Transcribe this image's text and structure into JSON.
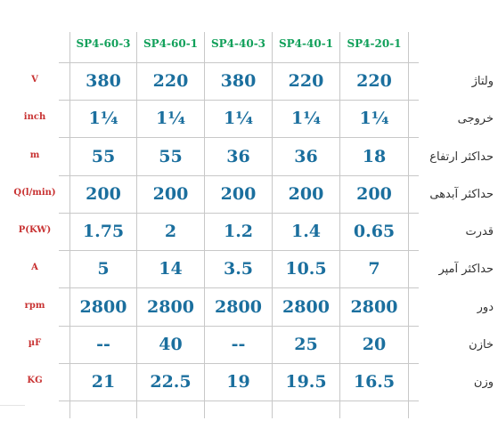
{
  "columns": [
    "SP4-60-3",
    "SP4-60-1",
    "SP4-40-3",
    "SP4-40-1",
    "SP4-20-1"
  ],
  "rows": [
    {
      "unit": "V",
      "label": "ولتاژ",
      "values": [
        "380",
        "220",
        "380",
        "220",
        "220"
      ]
    },
    {
      "unit": "inch",
      "label": "خروجی",
      "values": [
        "1¼",
        "1¼",
        "1¼",
        "1¼",
        "1¼"
      ]
    },
    {
      "unit": "m",
      "label": "حداکثر ارتفاع",
      "values": [
        "55",
        "55",
        "36",
        "36",
        "18"
      ]
    },
    {
      "unit": "Q(l/min)",
      "label": "حداکثر آبدهی",
      "values": [
        "200",
        "200",
        "200",
        "200",
        "200"
      ]
    },
    {
      "unit": "P(KW)",
      "label": "قدرت",
      "values": [
        "1.75",
        "2",
        "1.2",
        "1.4",
        "0.65"
      ]
    },
    {
      "unit": "A",
      "label": "حداکثر آمپر",
      "values": [
        "5",
        "14",
        "3.5",
        "10.5",
        "7"
      ]
    },
    {
      "unit": "rpm",
      "label": "دور",
      "values": [
        "2800",
        "2800",
        "2800",
        "2800",
        "2800"
      ]
    },
    {
      "unit": "µF",
      "label": "خازن",
      "values": [
        "--",
        "40",
        "--",
        "25",
        "20"
      ]
    },
    {
      "unit": "KG",
      "label": "وزن",
      "values": [
        "21",
        "22.5",
        "19",
        "19.5",
        "16.5"
      ]
    }
  ]
}
